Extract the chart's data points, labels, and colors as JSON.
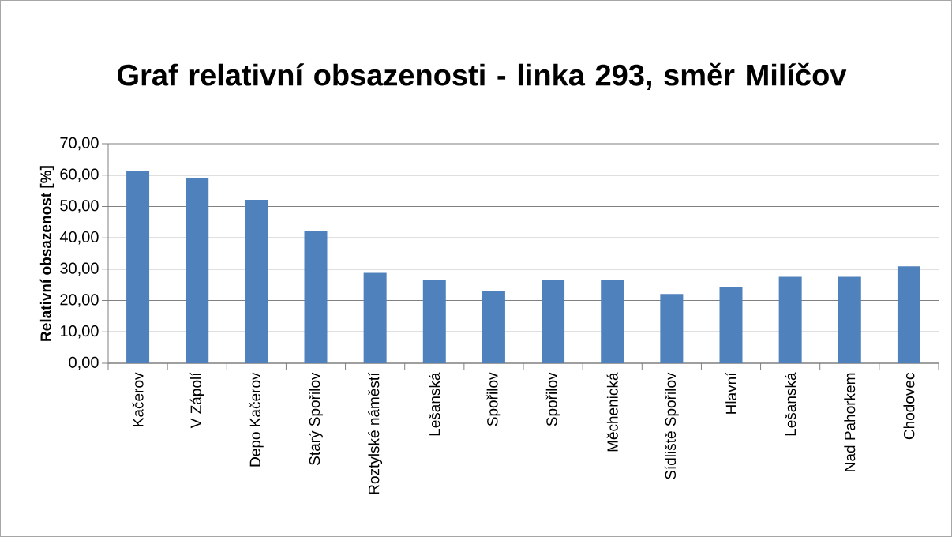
{
  "chart_data": {
    "type": "bar",
    "title": "Graf relativní obsazenosti - linka 293, směr Milíčov",
    "ylabel": "Relativní obsazenost [%]",
    "categories": [
      "Kačerov",
      "V Zápolí",
      "Depo Kačerov",
      "Starý Spořilov",
      "Roztylské náměstí",
      "Lešanská",
      "Spořilov",
      "Spořilov",
      "Měchenická",
      "Sídliště Spořilov",
      "Hlavní",
      "Lešanská",
      "Nad Pahorkem",
      "Chodovec"
    ],
    "values": [
      61.2,
      58.9,
      52.1,
      42.1,
      28.8,
      26.5,
      23.1,
      26.5,
      26.5,
      22.1,
      24.3,
      27.6,
      27.6,
      30.9
    ],
    "color": "#4f81bd",
    "ylim": [
      0,
      70
    ],
    "yticks": [
      {
        "value": 0,
        "label": "0,00"
      },
      {
        "value": 10,
        "label": "10,00"
      },
      {
        "value": 20,
        "label": "20,00"
      },
      {
        "value": 30,
        "label": "30,00"
      },
      {
        "value": 40,
        "label": "40,00"
      },
      {
        "value": 50,
        "label": "50,00"
      },
      {
        "value": 60,
        "label": "60,00"
      },
      {
        "value": 70,
        "label": "70,00"
      }
    ],
    "grid": "y"
  }
}
